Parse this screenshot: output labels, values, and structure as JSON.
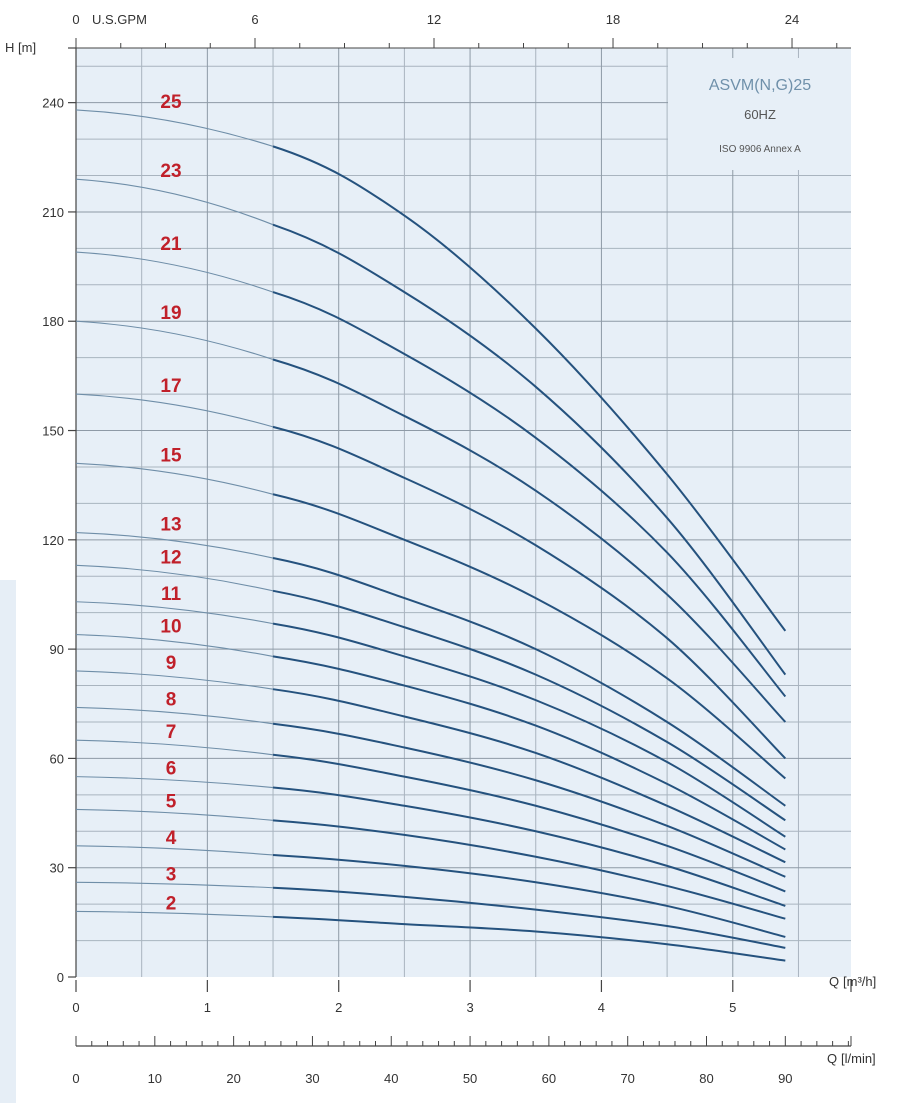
{
  "chart_data": {
    "type": "line",
    "legend": {
      "model": "ASVM(N,G)25",
      "frequency": "60HZ",
      "standard": "ISO 9906 Annex A"
    },
    "y_axis": {
      "label": "H",
      "unit": "[m]",
      "ylim": [
        0,
        255
      ],
      "ticks": [
        0,
        30,
        60,
        90,
        120,
        150,
        180,
        210,
        240
      ]
    },
    "x_axis": {
      "label": "Q",
      "unit": "[m³/h]",
      "xlim": [
        0,
        5.9
      ],
      "ticks": [
        0,
        1,
        2,
        3,
        4,
        5
      ]
    },
    "top_axis": {
      "label": "U.S.GPM",
      "ticks": [
        0,
        6,
        12,
        18,
        24
      ],
      "zero_label": "0"
    },
    "bottom_axis": {
      "label": "Q",
      "unit": "[l/min]",
      "ticks": [
        0,
        10,
        20,
        30,
        40,
        50,
        60,
        70,
        80,
        90
      ]
    },
    "grid": true,
    "operating_range": [
      1.5,
      5.4
    ],
    "x": [
      0,
      1.5,
      2.5,
      3.5,
      4.5,
      5.4
    ],
    "series": [
      {
        "name": "2",
        "values": [
          18,
          16.5,
          14.5,
          12.5,
          9,
          4.5
        ]
      },
      {
        "name": "3",
        "values": [
          26,
          24.5,
          22,
          18.5,
          14,
          8
        ]
      },
      {
        "name": "4",
        "values": [
          36,
          33.5,
          30.5,
          26,
          19.5,
          11
        ]
      },
      {
        "name": "5",
        "values": [
          46,
          43,
          39,
          33,
          25,
          16
        ]
      },
      {
        "name": "6",
        "values": [
          55,
          52,
          47,
          40,
          30.5,
          19.5
        ]
      },
      {
        "name": "7",
        "values": [
          65,
          61,
          55,
          47,
          36,
          23.5
        ]
      },
      {
        "name": "8",
        "values": [
          74,
          69.5,
          63,
          54,
          41.5,
          27.5
        ]
      },
      {
        "name": "9",
        "values": [
          84,
          79,
          71.5,
          61.5,
          47,
          31.5
        ]
      },
      {
        "name": "10",
        "values": [
          94,
          88,
          80,
          69,
          53,
          35
        ]
      },
      {
        "name": "11",
        "values": [
          103,
          97,
          88,
          76,
          59,
          38.5
        ]
      },
      {
        "name": "12",
        "values": [
          113,
          106,
          96,
          83,
          64.5,
          43
        ]
      },
      {
        "name": "13",
        "values": [
          122,
          115,
          104,
          90,
          70,
          47
        ]
      },
      {
        "name": "15",
        "values": [
          141,
          132.5,
          120,
          104,
          82,
          54.5
        ]
      },
      {
        "name": "17",
        "values": [
          160,
          151,
          137,
          118.5,
          93,
          60
        ]
      },
      {
        "name": "19",
        "values": [
          180,
          169.5,
          154,
          133.5,
          105,
          70
        ]
      },
      {
        "name": "21",
        "values": [
          199,
          188,
          171,
          148,
          116.5,
          77
        ]
      },
      {
        "name": "23",
        "values": [
          219,
          206.5,
          188,
          162,
          126,
          83
        ]
      },
      {
        "name": "25",
        "values": [
          238,
          228,
          209,
          178,
          138,
          95
        ]
      }
    ]
  }
}
